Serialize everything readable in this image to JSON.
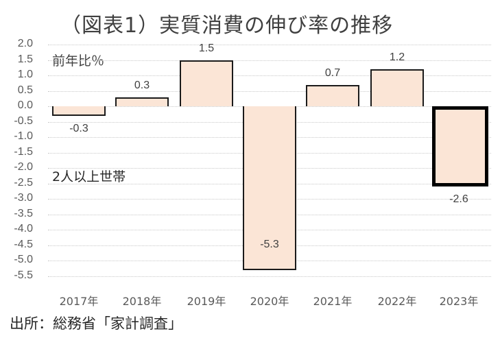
{
  "title": "（図表1）実質消費の伸び率の推移",
  "unit_label": "前年比％",
  "group_label": "2人以上世帯",
  "source": "出所：総務省「家計調査」",
  "y_ticks": [
    "2.0",
    "1.5",
    "1.0",
    "0.5",
    "0.0",
    "-0.5",
    "-1.0",
    "-1.5",
    "-2.0",
    "-2.5",
    "-3.0",
    "-3.5",
    "-4.0",
    "-4.5",
    "-5.0",
    "-5.5"
  ],
  "bars": [
    {
      "year": "2017年",
      "value": -0.3,
      "label": "-0.3"
    },
    {
      "year": "2018年",
      "value": 0.3,
      "label": "0.3"
    },
    {
      "year": "2019年",
      "value": 1.5,
      "label": "1.5"
    },
    {
      "year": "2020年",
      "value": -5.3,
      "label": "-5.3"
    },
    {
      "year": "2021年",
      "value": 0.7,
      "label": "0.7"
    },
    {
      "year": "2022年",
      "value": 1.2,
      "label": "1.2"
    },
    {
      "year": "2023年",
      "value": -2.6,
      "label": "-2.6",
      "highlighted": true
    }
  ],
  "colors": {
    "bar_fill": "#fbe5d6",
    "bar_border": "#1a1a1a",
    "grid": "#c8c8c8"
  },
  "chart_data": {
    "type": "bar",
    "title": "（図表1）実質消費の伸び率の推移",
    "categories": [
      "2017年",
      "2018年",
      "2019年",
      "2020年",
      "2021年",
      "2022年",
      "2023年"
    ],
    "values": [
      -0.3,
      0.3,
      1.5,
      -5.3,
      0.7,
      1.2,
      -2.6
    ],
    "xlabel": "",
    "ylabel": "前年比％",
    "ylim": [
      -5.5,
      2.0
    ],
    "ytick_step": 0.5,
    "grid": true,
    "legend": null,
    "annotations": [
      "前年比％",
      "2人以上世帯",
      "出所：総務省「家計調査」"
    ],
    "highlighted_category": "2023年"
  }
}
